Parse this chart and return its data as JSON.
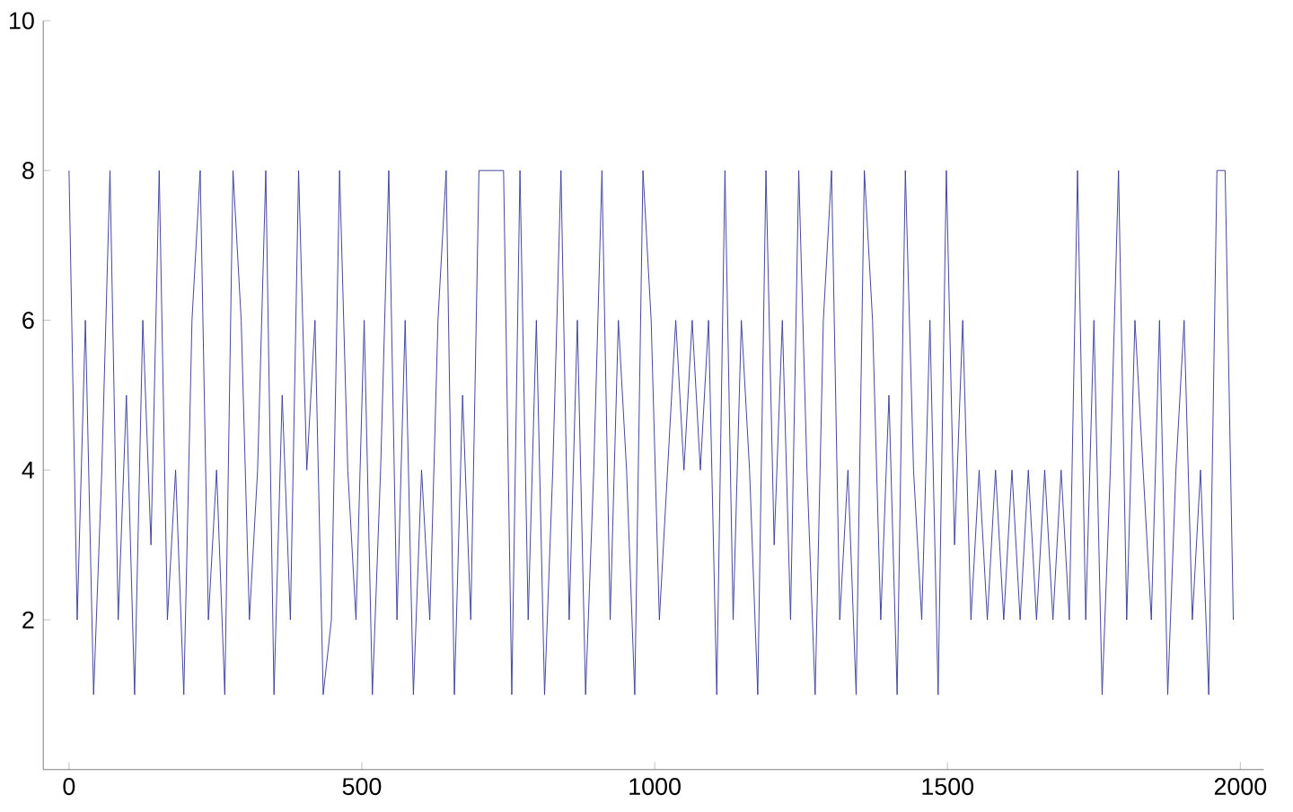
{
  "chart_data": {
    "type": "line",
    "color": "#3f3f9c",
    "grid": false,
    "marker": "none",
    "line_style": "solid",
    "xlim": [
      -44,
      2040
    ],
    "ylim": [
      0,
      10
    ],
    "xticks": [
      0,
      500,
      1000,
      1500,
      2000
    ],
    "yticks": [
      2,
      4,
      6,
      8,
      10
    ],
    "x": [
      0,
      14,
      28,
      42,
      56,
      70,
      84,
      98,
      112,
      126,
      140,
      154,
      168,
      182,
      196,
      210,
      224,
      238,
      252,
      266,
      280,
      294,
      308,
      322,
      336,
      350,
      364,
      378,
      392,
      406,
      420,
      434,
      448,
      462,
      476,
      490,
      504,
      518,
      532,
      546,
      560,
      574,
      588,
      602,
      616,
      630,
      644,
      658,
      672,
      686,
      700,
      714,
      728,
      742,
      756,
      770,
      784,
      798,
      812,
      826,
      840,
      854,
      868,
      882,
      896,
      910,
      924,
      938,
      952,
      966,
      980,
      994,
      1008,
      1022,
      1036,
      1050,
      1064,
      1078,
      1092,
      1106,
      1120,
      1134,
      1148,
      1162,
      1176,
      1190,
      1204,
      1218,
      1232,
      1246,
      1260,
      1274,
      1288,
      1302,
      1316,
      1330,
      1344,
      1358,
      1372,
      1386,
      1400,
      1414,
      1428,
      1442,
      1456,
      1470,
      1484,
      1498,
      1512,
      1526,
      1540,
      1554,
      1568,
      1582,
      1596,
      1610,
      1624,
      1638,
      1652,
      1666,
      1680,
      1694,
      1708,
      1722,
      1736,
      1750,
      1764,
      1778,
      1792,
      1806,
      1820,
      1834,
      1848,
      1862,
      1876,
      1890,
      1904,
      1918,
      1932,
      1946,
      1960,
      1974,
      1988
    ],
    "values": [
      8,
      2,
      6,
      1,
      4,
      8,
      2,
      5,
      1,
      6,
      3,
      8,
      2,
      4,
      1,
      6,
      8,
      2,
      4,
      1,
      8,
      6,
      2,
      4,
      8,
      1,
      5,
      2,
      8,
      4,
      6,
      1,
      2,
      8,
      4,
      2,
      6,
      1,
      4,
      8,
      2,
      6,
      1,
      4,
      2,
      6,
      8,
      1,
      5,
      2,
      8,
      8,
      8,
      8,
      1,
      8,
      2,
      6,
      1,
      4,
      8,
      2,
      6,
      1,
      4,
      8,
      2,
      6,
      4,
      1,
      8,
      6,
      2,
      4,
      6,
      4,
      6,
      4,
      6,
      1,
      8,
      2,
      6,
      4,
      1,
      8,
      3,
      6,
      2,
      8,
      4,
      1,
      6,
      8,
      2,
      4,
      1,
      8,
      6,
      2,
      5,
      1,
      8,
      4,
      2,
      6,
      1,
      8,
      3,
      6,
      2,
      4,
      2,
      4,
      2,
      4,
      2,
      4,
      2,
      4,
      2,
      4,
      2,
      8,
      2,
      6,
      1,
      4,
      8,
      2,
      6,
      4,
      2,
      6,
      1,
      4,
      6,
      2,
      4,
      1,
      8,
      8,
      2
    ]
  }
}
